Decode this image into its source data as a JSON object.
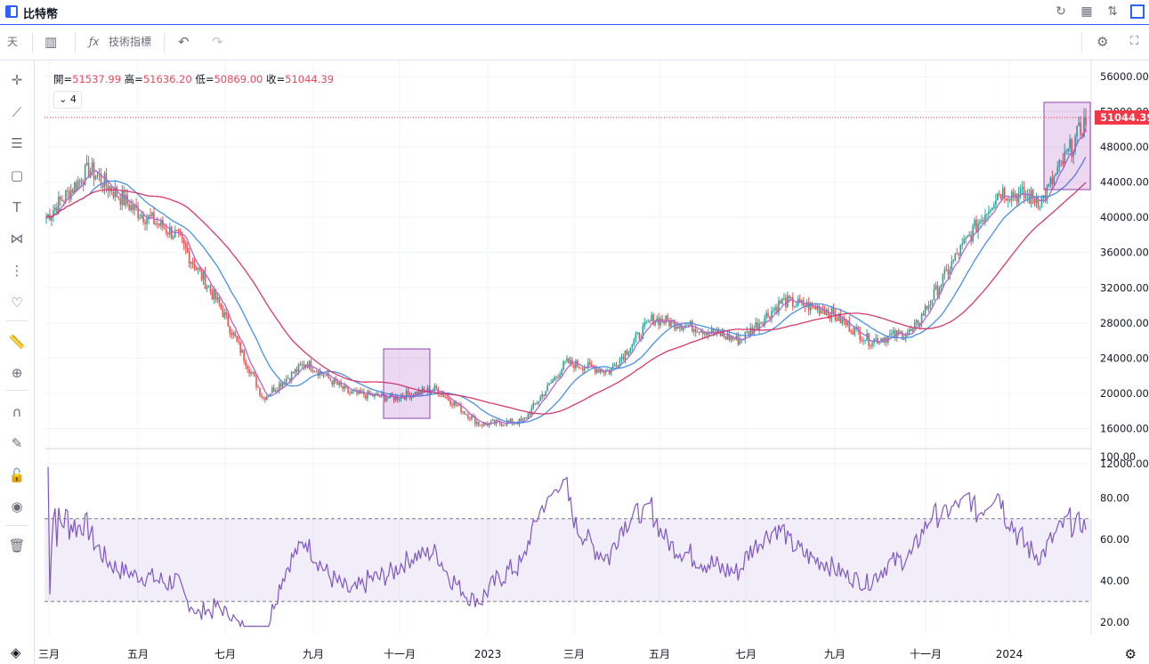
{
  "window": {
    "title": "比特幣"
  },
  "toolbar": {
    "interval": "天",
    "indicators_label": "技術指標"
  },
  "ohlc": {
    "open_label": "開=",
    "open": "51537.99",
    "high_label": "高=",
    "high": "51636.20",
    "low_label": "低=",
    "low": "50869.00",
    "close_label": "收=",
    "close": "51044.39"
  },
  "indicator_toggle": {
    "count": "4"
  },
  "price_axis": {
    "ticks": [
      "56000.00",
      "52000.00",
      "48000.00",
      "44000.00",
      "40000.00",
      "36000.00",
      "32000.00",
      "28000.00",
      "24000.00",
      "20000.00",
      "16000.00",
      "12000.00"
    ],
    "last_price": "51044.39"
  },
  "rsi_axis": {
    "ticks": [
      "100.00",
      "80.00",
      "60.00",
      "40.00",
      "20.00"
    ],
    "upper_band": 70,
    "lower_band": 30
  },
  "time_axis": {
    "labels": [
      "三月",
      "五月",
      "七月",
      "九月",
      "十一月",
      "2023",
      "三月",
      "五月",
      "七月",
      "九月",
      "十一月",
      "2024"
    ]
  },
  "colors": {
    "accent": "#2962ff",
    "price_tag": "#f23645",
    "up": "#26a69a",
    "down": "#ef5350",
    "ma_fast": "#b167d1",
    "ma_mid": "#4a90e2",
    "ma_slow": "#d83a6a",
    "rsi": "#7e57c2"
  },
  "chart_data": {
    "type": "line",
    "series": [
      {
        "name": "close",
        "x": [
          "2022-02",
          "2022-03",
          "2022-04",
          "2022-05",
          "2022-06",
          "2022-07",
          "2022-08",
          "2022-09",
          "2022-10",
          "2022-11",
          "2022-12",
          "2023-01",
          "2023-02",
          "2023-03",
          "2023-04",
          "2023-05",
          "2023-06",
          "2023-07",
          "2023-08",
          "2023-09",
          "2023-10",
          "2023-11",
          "2023-12",
          "2024-01",
          "2024-02"
        ],
        "values": [
          40000,
          45500,
          41000,
          38000,
          30000,
          19500,
          23500,
          20000,
          19500,
          20500,
          16500,
          16800,
          23500,
          22500,
          28500,
          27500,
          26000,
          30500,
          29500,
          26000,
          27000,
          35500,
          43000,
          42000,
          51044
        ]
      }
    ],
    "ylim": [
      12000,
      56000
    ],
    "rsi_ylim": [
      20,
      100
    ]
  }
}
